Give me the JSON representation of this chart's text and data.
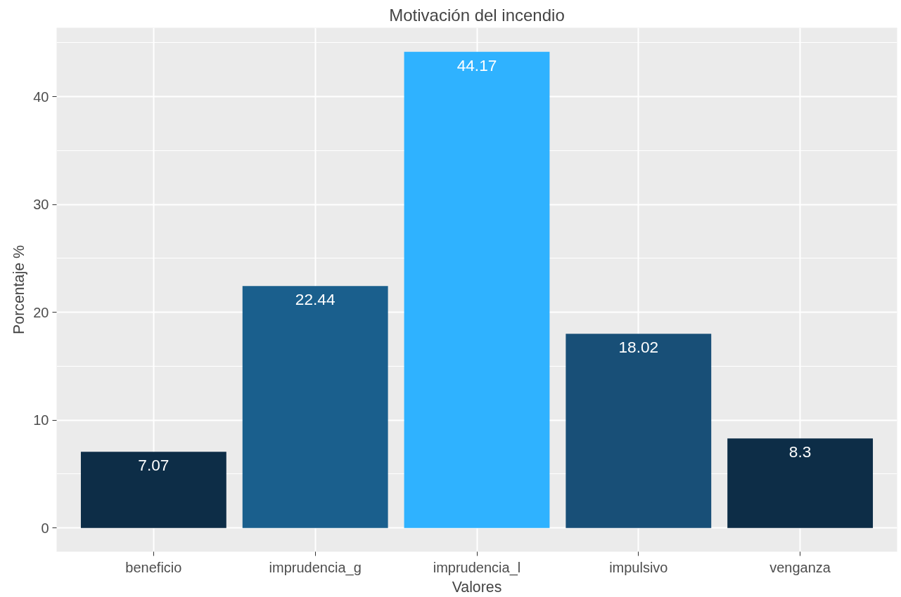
{
  "chart_data": {
    "type": "bar",
    "title": "Motivación del incendio",
    "xlabel": "Valores",
    "ylabel": "Porcentaje %",
    "categories": [
      "beneficio",
      "imprudencia_g",
      "imprudencia_l",
      "impulsivo",
      "venganza"
    ],
    "values": [
      7.07,
      22.44,
      44.17,
      18.02,
      8.3
    ],
    "colors": [
      "#0d2d47",
      "#1a5f8d",
      "#2fb2ff",
      "#184f77",
      "#0d2d47"
    ],
    "ylim": [
      -2.2,
      46.4
    ],
    "yticks": [
      0,
      10,
      20,
      30,
      40
    ],
    "grid": true,
    "data_labels": true
  }
}
